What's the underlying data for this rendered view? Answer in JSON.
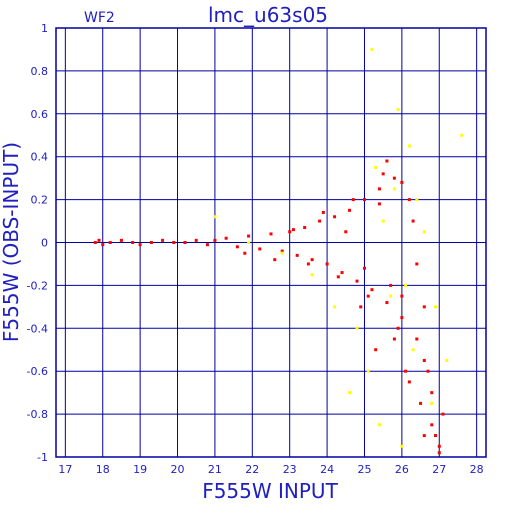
{
  "chart_data": {
    "type": "scatter",
    "title": "lmc_u63s05",
    "panel_label": "WF2",
    "xlabel": "F555W INPUT",
    "ylabel": "F555W (OBS-INPUT)",
    "xlim": [
      16.75,
      28.25
    ],
    "ylim": [
      -1,
      1
    ],
    "x_ticks": [
      17,
      18,
      19,
      20,
      21,
      22,
      23,
      24,
      25,
      26,
      27,
      28
    ],
    "y_ticks": [
      1,
      0.8,
      0.6,
      0.4,
      0.2,
      0,
      -0.2,
      -0.4,
      -0.6,
      -0.8,
      -1
    ],
    "grid": true,
    "colors": {
      "frame": "#0000a0",
      "grid": "#0000a0",
      "text": "#2020c0",
      "series_primary": "#ff0000",
      "series_secondary": "#ffff00"
    },
    "series": [
      {
        "color_key": "series_primary",
        "x": [
          17.8,
          17.9,
          18.0,
          18.2,
          18.5,
          18.8,
          19.0,
          19.3,
          19.6,
          19.9,
          20.2,
          20.5,
          20.8,
          21.0,
          21.3,
          21.6,
          21.9,
          22.2,
          22.5,
          22.8,
          23.0,
          23.2,
          23.4,
          23.6,
          23.8,
          24.0,
          24.2,
          24.4,
          24.6,
          24.8,
          25.0,
          25.2,
          25.4,
          25.6,
          25.8,
          26.0,
          26.2,
          26.4,
          26.6,
          26.8,
          21.8,
          22.6,
          23.1,
          23.5,
          23.9,
          24.3,
          24.7,
          25.1,
          25.5,
          25.9,
          26.3,
          26.7,
          24.9,
          25.3,
          25.7,
          26.1,
          26.5,
          26.9,
          25.6,
          26.0,
          26.4,
          26.8,
          27.0,
          25.8,
          26.2,
          26.6,
          27.1,
          24.5,
          25.0,
          25.4,
          26.0,
          26.6,
          27.0
        ],
        "y": [
          0.0,
          0.01,
          -0.01,
          0.0,
          0.01,
          0.0,
          -0.01,
          0.0,
          0.01,
          0.0,
          0.0,
          0.01,
          -0.01,
          0.01,
          0.02,
          -0.02,
          0.03,
          -0.03,
          0.04,
          -0.04,
          0.05,
          -0.06,
          0.07,
          -0.08,
          0.1,
          -0.1,
          0.12,
          -0.14,
          0.15,
          -0.18,
          0.2,
          -0.22,
          0.25,
          -0.28,
          0.3,
          -0.35,
          0.2,
          -0.45,
          -0.55,
          -0.7,
          -0.05,
          -0.08,
          0.06,
          -0.1,
          0.14,
          -0.16,
          0.2,
          -0.25,
          0.32,
          -0.4,
          0.1,
          -0.6,
          -0.3,
          -0.5,
          -0.2,
          -0.6,
          -0.75,
          -0.9,
          0.38,
          0.28,
          -0.1,
          -0.85,
          -0.95,
          -0.45,
          -0.65,
          -0.3,
          -0.8,
          0.05,
          -0.12,
          0.18,
          -0.25,
          -0.9,
          -0.98
        ]
      },
      {
        "color_key": "series_secondary",
        "x": [
          21.0,
          21.9,
          22.8,
          23.6,
          24.2,
          24.8,
          25.2,
          25.5,
          25.8,
          26.1,
          26.3,
          26.6,
          26.9,
          27.2,
          27.6,
          25.4,
          26.0,
          26.4,
          25.9,
          25.1,
          24.6,
          25.7,
          26.2,
          26.8,
          25.3
        ],
        "y": [
          0.12,
          0.0,
          -0.05,
          -0.15,
          -0.3,
          -0.4,
          0.9,
          0.1,
          0.25,
          -0.2,
          -0.5,
          0.05,
          -0.3,
          -0.55,
          0.5,
          -0.85,
          -0.95,
          0.2,
          0.62,
          -0.6,
          -0.7,
          -0.25,
          0.45,
          -0.75,
          0.35
        ]
      }
    ]
  }
}
